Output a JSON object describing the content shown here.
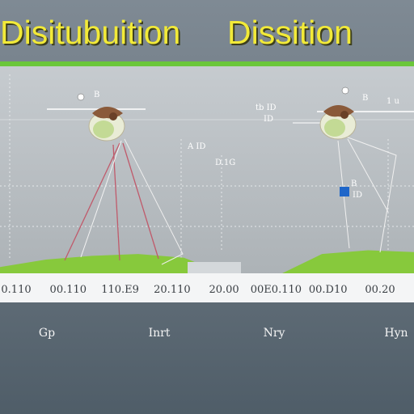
{
  "title_parts": [
    "Disitubuition",
    "Dissition"
  ],
  "colors": {
    "title": "#f2ea38",
    "frame": "#6bc63a",
    "curve": "#87c93c",
    "marker": "#1f66c9"
  },
  "icons": [
    "flower-bulb-icon",
    "flower-bulb-icon",
    "blue-square-marker-icon"
  ],
  "chart_data": {
    "type": "area",
    "title": "Disitubuition Dissition",
    "x_tick_labels": [
      "0.110",
      "00.110",
      "110.E9",
      "20.110",
      "20.00",
      "00E0.110",
      "00.D10",
      "00.20"
    ],
    "categories": [
      "Gp",
      "Inrt",
      "Nry",
      "Hyn"
    ],
    "x": [
      0,
      1,
      2,
      3,
      4,
      5,
      6,
      7,
      8,
      9
    ],
    "series": [
      {
        "values": [
          0.06,
          0.1,
          0.12,
          0.13,
          0.11,
          0.01,
          0.01,
          0.13,
          0.15,
          0.14
        ]
      }
    ],
    "annotations": [
      "B",
      "tb ID",
      "ID",
      "A ID",
      "D.1G",
      "B",
      "1 u",
      "B",
      "ID"
    ],
    "ylim": [
      0,
      1
    ],
    "grid": true
  }
}
